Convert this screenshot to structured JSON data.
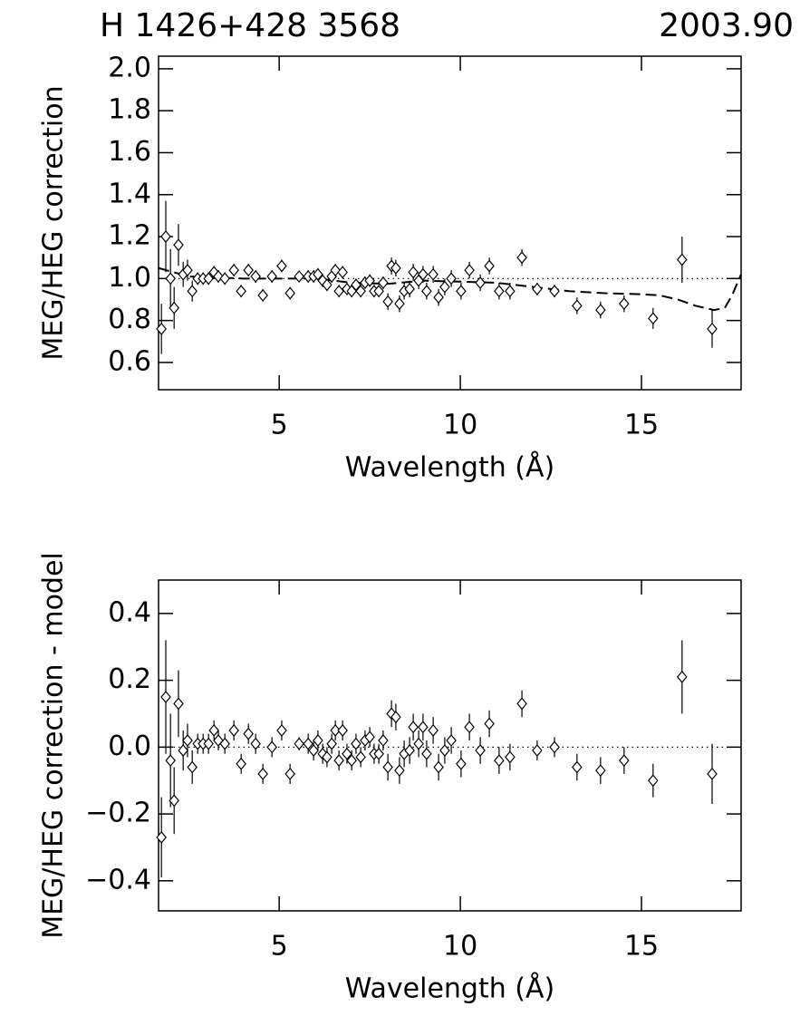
{
  "chart_data": [
    {
      "type": "scatter",
      "title": "H 1426+428 3568",
      "annotation": "2003.90",
      "xlabel": "Wavelength (Å)",
      "ylabel": "MEG/HEG correction",
      "xlim": [
        1.67,
        17.75
      ],
      "ylim": [
        0.47,
        2.06
      ],
      "xticks": [
        5,
        10,
        15
      ],
      "yticks": [
        0.6,
        0.8,
        {
          "value": 1.0,
          "label": "1.0"
        },
        1.2,
        1.4,
        1.6,
        1.8,
        {
          "value": 2.0,
          "label": "2.0"
        }
      ],
      "refline": 1.0,
      "series": [
        {
          "x": [
            1.75,
            1.87,
            2.0,
            2.1,
            2.22,
            2.35,
            2.47,
            2.6,
            2.75,
            2.9,
            3.05,
            3.2,
            3.32,
            3.5,
            3.75,
            3.95,
            4.15,
            4.35,
            4.55,
            4.8,
            5.07,
            5.3,
            5.55,
            5.8,
            5.95,
            6.07,
            6.2,
            6.32,
            6.45,
            6.55,
            6.65,
            6.75,
            6.87,
            7.0,
            7.12,
            7.25,
            7.37,
            7.5,
            7.62,
            7.75,
            7.87,
            8.0,
            8.1,
            8.22,
            8.32,
            8.45,
            8.6,
            8.7,
            8.85,
            8.97,
            9.07,
            9.25,
            9.4,
            9.57,
            9.75,
            10.02,
            10.25,
            10.55,
            10.8,
            11.07,
            11.37,
            11.7,
            12.12,
            12.6,
            13.22,
            13.87,
            14.52,
            15.32,
            16.12,
            16.95
          ],
          "values": [
            0.76,
            1.2,
            1.0,
            0.86,
            1.16,
            1.02,
            1.04,
            0.94,
            1.0,
            1.0,
            1.0,
            1.03,
            1.01,
            1.0,
            1.04,
            0.94,
            1.04,
            1.01,
            0.92,
            1.01,
            1.06,
            0.93,
            1.01,
            1.01,
            1.01,
            1.02,
            0.99,
            0.97,
            1.01,
            1.04,
            0.94,
            1.03,
            0.95,
            0.94,
            0.97,
            0.94,
            0.98,
            0.99,
            0.94,
            0.94,
            0.98,
            0.89,
            1.06,
            1.05,
            0.88,
            0.94,
            0.95,
            1.03,
            0.99,
            1.02,
            0.94,
            1.02,
            0.91,
            0.96,
            1.0,
            0.94,
            1.04,
            0.98,
            1.06,
            0.94,
            0.94,
            1.1,
            0.95,
            0.94,
            0.87,
            0.85,
            0.88,
            0.81,
            1.09,
            0.76
          ],
          "errors": [
            0.12,
            0.17,
            0.14,
            0.1,
            0.1,
            0.06,
            0.05,
            0.05,
            0.03,
            0.03,
            0.03,
            0.03,
            0.03,
            0.03,
            0.03,
            0.03,
            0.03,
            0.03,
            0.03,
            0.03,
            0.03,
            0.03,
            0.02,
            0.03,
            0.03,
            0.03,
            0.03,
            0.03,
            0.03,
            0.03,
            0.03,
            0.03,
            0.03,
            0.03,
            0.03,
            0.03,
            0.03,
            0.03,
            0.03,
            0.03,
            0.03,
            0.04,
            0.04,
            0.04,
            0.04,
            0.04,
            0.04,
            0.04,
            0.04,
            0.04,
            0.04,
            0.04,
            0.04,
            0.04,
            0.04,
            0.04,
            0.04,
            0.04,
            0.04,
            0.04,
            0.04,
            0.04,
            0.03,
            0.03,
            0.04,
            0.04,
            0.04,
            0.05,
            0.11,
            0.09
          ]
        }
      ],
      "model": {
        "x": [
          1.67,
          2.5,
          4,
          6,
          7,
          8,
          9,
          10,
          11,
          12,
          13,
          14,
          15,
          15.5,
          16,
          16.5,
          17,
          17.3,
          17.5,
          17.75
        ],
        "values": [
          1.05,
          1.01,
          1.0,
          1.0,
          0.98,
          0.975,
          0.99,
          0.985,
          0.98,
          0.96,
          0.94,
          0.93,
          0.925,
          0.92,
          0.9,
          0.87,
          0.85,
          0.86,
          0.92,
          1.02
        ]
      }
    },
    {
      "type": "scatter",
      "xlabel": "Wavelength (Å)",
      "ylabel": "MEG/HEG correction - model",
      "xlim": [
        1.67,
        17.75
      ],
      "ylim": [
        -0.49,
        0.5
      ],
      "xticks": [
        5,
        10,
        15
      ],
      "yticks": [
        {
          "value": -0.4,
          "label": "−0.4"
        },
        {
          "value": -0.2,
          "label": "−0.2"
        },
        {
          "value": 0,
          "label": "0.0"
        },
        0.2,
        0.4
      ],
      "refline": 0,
      "series": [
        {
          "x": [
            1.75,
            1.87,
            2.0,
            2.1,
            2.22,
            2.35,
            2.47,
            2.6,
            2.75,
            2.9,
            3.05,
            3.2,
            3.32,
            3.5,
            3.75,
            3.95,
            4.15,
            4.35,
            4.55,
            4.8,
            5.07,
            5.3,
            5.55,
            5.8,
            5.95,
            6.07,
            6.2,
            6.32,
            6.45,
            6.55,
            6.65,
            6.75,
            6.87,
            7.0,
            7.12,
            7.25,
            7.37,
            7.5,
            7.62,
            7.75,
            7.87,
            8.0,
            8.1,
            8.22,
            8.32,
            8.45,
            8.6,
            8.7,
            8.85,
            8.97,
            9.07,
            9.25,
            9.4,
            9.57,
            9.75,
            10.02,
            10.25,
            10.55,
            10.8,
            11.07,
            11.37,
            11.7,
            12.12,
            12.6,
            13.22,
            13.87,
            14.52,
            15.32,
            16.12,
            16.95
          ],
          "values": [
            -0.27,
            0.15,
            -0.04,
            -0.16,
            0.13,
            -0.01,
            0.02,
            -0.06,
            0.01,
            0.01,
            0.01,
            0.05,
            0.02,
            0.01,
            0.05,
            -0.05,
            0.04,
            0.01,
            -0.08,
            0.0,
            0.05,
            -0.08,
            0.01,
            0.01,
            -0.01,
            0.02,
            -0.02,
            -0.03,
            0.01,
            0.05,
            -0.04,
            0.05,
            -0.02,
            -0.04,
            0.01,
            -0.03,
            0.02,
            0.03,
            -0.02,
            -0.02,
            0.02,
            -0.06,
            0.1,
            0.09,
            -0.07,
            -0.02,
            -0.01,
            0.06,
            0.01,
            0.06,
            -0.02,
            0.05,
            -0.06,
            -0.01,
            0.02,
            -0.05,
            0.06,
            -0.01,
            0.07,
            -0.04,
            -0.03,
            0.13,
            -0.01,
            0.0,
            -0.06,
            -0.07,
            -0.04,
            -0.1,
            0.21,
            -0.08
          ],
          "errors": [
            0.12,
            0.17,
            0.14,
            0.1,
            0.1,
            0.06,
            0.05,
            0.05,
            0.03,
            0.03,
            0.03,
            0.03,
            0.03,
            0.03,
            0.03,
            0.03,
            0.03,
            0.03,
            0.03,
            0.03,
            0.03,
            0.03,
            0.02,
            0.03,
            0.03,
            0.03,
            0.03,
            0.03,
            0.03,
            0.03,
            0.03,
            0.03,
            0.03,
            0.03,
            0.03,
            0.03,
            0.03,
            0.03,
            0.03,
            0.03,
            0.03,
            0.04,
            0.04,
            0.04,
            0.04,
            0.04,
            0.04,
            0.04,
            0.04,
            0.04,
            0.04,
            0.04,
            0.04,
            0.04,
            0.04,
            0.04,
            0.04,
            0.04,
            0.04,
            0.04,
            0.04,
            0.04,
            0.03,
            0.03,
            0.04,
            0.04,
            0.04,
            0.05,
            0.11,
            0.09
          ]
        }
      ]
    }
  ]
}
